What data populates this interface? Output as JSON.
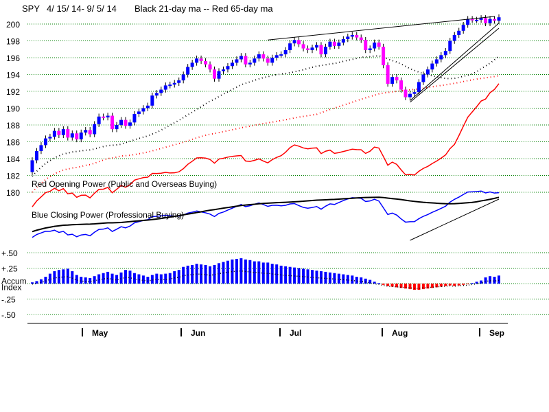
{
  "chart_data": {
    "type": "candlestick-indicator",
    "title": {
      "ticker": "SPY",
      "dates": "4/ 15/ 14- 9/ 5/ 14",
      "legend": "Black 21-day ma --  Red 65-day ma"
    },
    "price_axis": {
      "ticks": [
        "200",
        "198",
        "196",
        "194",
        "192",
        "190",
        "188",
        "186",
        "184",
        "182",
        "180"
      ],
      "range": [
        179,
        201.5
      ]
    },
    "accum_axis": {
      "ticks": [
        "+.50",
        "+.25",
        "Accum",
        "Index",
        "-.25",
        "-.50"
      ]
    },
    "months": [
      "May",
      "Jun",
      "Jul",
      "Aug",
      "Sep"
    ],
    "panel_labels": {
      "red_opening_power": "Red Opening Power (Public and Overseas Buying)",
      "blue_closing_power": "Blue Closing Power (Professional Buying)"
    },
    "colors": {
      "up": "#0000ff",
      "down": "#ff00ff",
      "ma65": "#ff0000",
      "ma21": "#000000",
      "accum_pos": "#0000ff",
      "accum_neg": "#ff0000",
      "grid": "#008000"
    },
    "closes": [
      183.8,
      184.9,
      185.6,
      186.4,
      186.6,
      187.3,
      186.8,
      187.5,
      186.5,
      187.0,
      186.3,
      187.1,
      187.4,
      186.9,
      188.1,
      189.0,
      188.9,
      189.1,
      187.5,
      188.0,
      188.6,
      187.9,
      188.3,
      189.3,
      189.6,
      190.0,
      190.3,
      191.5,
      191.8,
      192.2,
      192.7,
      192.8,
      193.0,
      193.3,
      194.0,
      194.9,
      195.4,
      195.9,
      195.6,
      195.2,
      194.6,
      193.5,
      194.4,
      194.6,
      195.0,
      195.4,
      195.8,
      196.2,
      195.2,
      195.4,
      195.9,
      196.4,
      195.9,
      195.4,
      196.0,
      196.3,
      196.4,
      196.9,
      197.7,
      198.1,
      197.6,
      197.1,
      196.9,
      197.2,
      197.5,
      196.4,
      197.3,
      197.9,
      197.4,
      197.8,
      198.2,
      198.5,
      198.7,
      198.4,
      198.1,
      196.9,
      197.1,
      197.8,
      197.3,
      195.1,
      192.9,
      193.7,
      193.3,
      192.2,
      191.3,
      191.7,
      191.9,
      193.1,
      194.0,
      194.6,
      195.3,
      195.8,
      196.3,
      196.8,
      198.0,
      198.7,
      199.2,
      199.9,
      200.6,
      200.5,
      200.5,
      200.7,
      200.1,
      200.6,
      200.4,
      200.8
    ],
    "accum_index": [
      0.02,
      0.04,
      0.07,
      0.11,
      0.16,
      0.2,
      0.22,
      0.23,
      0.24,
      0.2,
      0.14,
      0.11,
      0.1,
      0.09,
      0.12,
      0.15,
      0.17,
      0.19,
      0.16,
      0.14,
      0.18,
      0.22,
      0.21,
      0.17,
      0.15,
      0.13,
      0.11,
      0.14,
      0.16,
      0.15,
      0.16,
      0.17,
      0.2,
      0.22,
      0.27,
      0.29,
      0.3,
      0.32,
      0.31,
      0.3,
      0.28,
      0.3,
      0.33,
      0.35,
      0.37,
      0.39,
      0.4,
      0.41,
      0.39,
      0.38,
      0.36,
      0.36,
      0.34,
      0.34,
      0.32,
      0.31,
      0.29,
      0.28,
      0.27,
      0.26,
      0.25,
      0.24,
      0.23,
      0.22,
      0.21,
      0.2,
      0.19,
      0.18,
      0.17,
      0.16,
      0.15,
      0.14,
      0.13,
      0.11,
      0.1,
      0.08,
      0.06,
      0.03,
      0.01,
      -0.02,
      -0.04,
      -0.05,
      -0.06,
      -0.07,
      -0.08,
      -0.09,
      -0.1,
      -0.1,
      -0.09,
      -0.08,
      -0.07,
      -0.06,
      -0.05,
      -0.04,
      -0.03,
      -0.04,
      -0.03,
      -0.02,
      -0.01,
      0.01,
      0.03,
      0.05,
      0.1,
      0.12,
      0.11,
      0.13
    ],
    "annotations": [
      "21-day ma (black dotted)",
      "65-day ma (red dotted)",
      "rising wedge trendlines"
    ]
  }
}
